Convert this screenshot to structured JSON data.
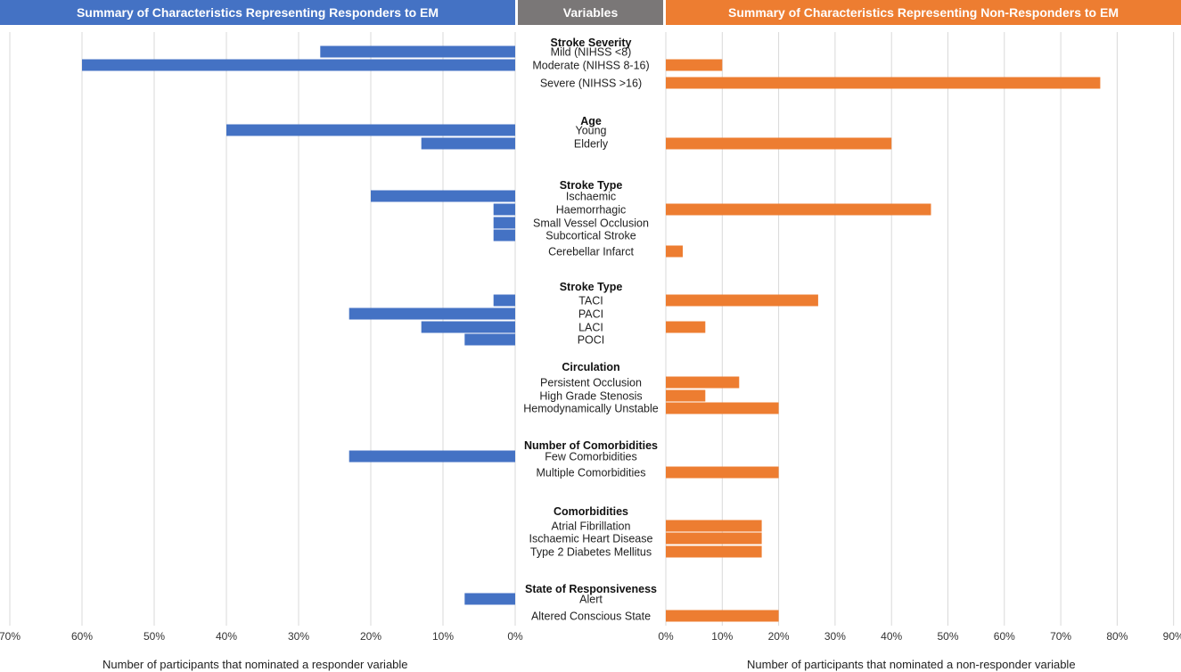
{
  "headers": {
    "left": "Summary of Characteristics Representing Responders to EM",
    "middle": "Variables",
    "right": "Summary of Characteristics Representing Non-Responders to EM"
  },
  "axis_titles": {
    "left": "Number of participants that nominated a responder variable",
    "right": "Number of participants that nominated a non-responder variable"
  },
  "colors": {
    "responder": "#4472c4",
    "non_responder": "#ed7d31",
    "grid": "#d9d9d9"
  },
  "chart_data": {
    "type": "bar",
    "orientation": "horizontal",
    "left_axis": {
      "ticks": [
        "70%",
        "60%",
        "50%",
        "40%",
        "30%",
        "20%",
        "10%",
        "0%"
      ],
      "range": [
        0,
        70
      ],
      "direction": "reversed"
    },
    "right_axis": {
      "ticks": [
        "0%",
        "10%",
        "20%",
        "30%",
        "40%",
        "50%",
        "60%",
        "70%",
        "80%",
        "90%"
      ],
      "range": [
        0,
        90
      ]
    },
    "groups": [
      {
        "title": "Stroke Severity",
        "items": [
          {
            "label": "Mild (NIHSS  <8)",
            "responder": 27,
            "non_responder": 0
          },
          {
            "label": "Moderate (NIHSS  8-16)",
            "responder": 60,
            "non_responder": 10
          },
          {
            "label": "Severe (NIHSS  >16)",
            "responder": 0,
            "non_responder": 77
          }
        ]
      },
      {
        "title": "Age",
        "items": [
          {
            "label": "Young",
            "responder": 40,
            "non_responder": 0
          },
          {
            "label": "Elderly",
            "responder": 13,
            "non_responder": 40
          }
        ]
      },
      {
        "title": "Stroke Type",
        "items": [
          {
            "label": "Ischaemic",
            "responder": 20,
            "non_responder": 0
          },
          {
            "label": "Haemorrhagic",
            "responder": 3,
            "non_responder": 47
          },
          {
            "label": "Small Vessel Occlusion",
            "responder": 3,
            "non_responder": 0
          },
          {
            "label": "Subcortical Stroke",
            "responder": 3,
            "non_responder": 0
          },
          {
            "label": "Cerebellar Infarct",
            "responder": 0,
            "non_responder": 3
          }
        ]
      },
      {
        "title": "Stroke Type",
        "items": [
          {
            "label": "TACI",
            "responder": 3,
            "non_responder": 27
          },
          {
            "label": "PACI",
            "responder": 23,
            "non_responder": 0
          },
          {
            "label": "LACI",
            "responder": 13,
            "non_responder": 7
          },
          {
            "label": "POCI",
            "responder": 7,
            "non_responder": 0
          }
        ]
      },
      {
        "title": "Circulation",
        "items": [
          {
            "label": "Persistent Occlusion",
            "responder": 0,
            "non_responder": 13
          },
          {
            "label": "High Grade Stenosis",
            "responder": 0,
            "non_responder": 7
          },
          {
            "label": "Hemodynamically Unstable",
            "responder": 0,
            "non_responder": 20
          }
        ]
      },
      {
        "title": "Number of Comorbidities",
        "items": [
          {
            "label": "Few Comorbidities",
            "responder": 23,
            "non_responder": 0
          },
          {
            "label": "Multiple Comorbidities",
            "responder": 0,
            "non_responder": 20
          }
        ]
      },
      {
        "title": "Comorbidities",
        "items": [
          {
            "label": "Atrial Fibrillation",
            "responder": 0,
            "non_responder": 17
          },
          {
            "label": "Ischaemic Heart Disease",
            "responder": 0,
            "non_responder": 17
          },
          {
            "label": "Type 2 Diabetes Mellitus",
            "responder": 0,
            "non_responder": 17
          }
        ]
      },
      {
        "title": "State of Responsiveness",
        "items": [
          {
            "label": "Alert",
            "responder": 7,
            "non_responder": 0
          },
          {
            "label": "Altered Conscious State",
            "responder": 0,
            "non_responder": 20
          }
        ]
      }
    ]
  }
}
